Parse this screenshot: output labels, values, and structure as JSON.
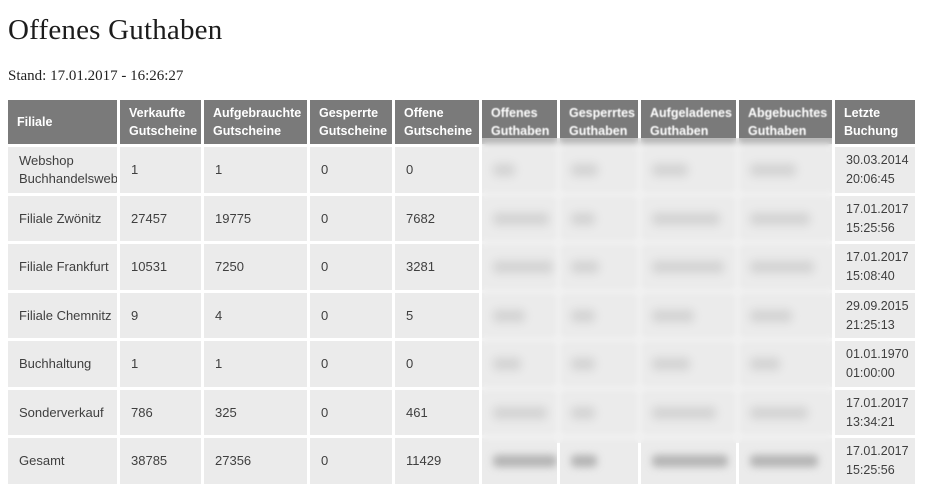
{
  "page": {
    "title": "Offenes Guthaben",
    "stand_line": "Stand: 17.01.2017 - 16:26:27"
  },
  "colors": {
    "header_bg": "#7a7a7a",
    "header_text": "#ffffff",
    "cell_bg": "#ebebeb",
    "cell_text": "#3f3f3f",
    "title_text": "#1c1c1c",
    "page_bg": "#ffffff",
    "smudge": "#a6a6a6"
  },
  "table": {
    "columns": [
      {
        "name": "filiale",
        "label": "Filiale",
        "type": "text",
        "key": "filiale"
      },
      {
        "name": "verkaufte-gutscheine",
        "label": "Verkaufte Gutscheine",
        "type": "text",
        "key": "verkaufte_gutscheine"
      },
      {
        "name": "aufgebrauchte-gutscheine",
        "label": "Aufgebrauchte Gutscheine",
        "type": "text",
        "key": "aufgebrauchte_gutscheine"
      },
      {
        "name": "gesperrte-gutscheine",
        "label": "Gesperrte Gutscheine",
        "type": "text",
        "key": "gesperrte_gutscheine"
      },
      {
        "name": "offene-gutscheine",
        "label": "Offene Gutscheine",
        "type": "text",
        "key": "offene_gutscheine"
      },
      {
        "name": "offenes-guthaben",
        "label": "Offenes Guthaben",
        "type": "redacted",
        "ri": 0,
        "blurred_header": true
      },
      {
        "name": "gesperrtes-guthaben",
        "label": "Gesperrtes Guthaben",
        "type": "redacted",
        "ri": 1,
        "blurred_header": true
      },
      {
        "name": "aufgeladenes-guthaben",
        "label": "Aufgeladenes Guthaben",
        "type": "redacted",
        "ri": 2,
        "blurred_header": true
      },
      {
        "name": "abgebuchtes-guthaben",
        "label": "Abgebuchtes Guthaben",
        "type": "redacted",
        "ri": 3,
        "blurred_header": true
      },
      {
        "name": "letzte-buchung",
        "label": "Letzte Buchung",
        "type": "datetime",
        "key": "letzte_buchung"
      }
    ],
    "redacted_note": "Die vier Guthaben-Spalten sind im Screenshot unkenntlich gemacht (verpixelt/unleserlich)",
    "rows": [
      {
        "filiale": "Webshop Buchhandelsweb",
        "verkaufte_gutscheine": "1",
        "aufgebrauchte_gutscheine": "1",
        "gesperrte_gutscheine": "0",
        "offene_gutscheine": "0",
        "guthaben_blur_widths": [
          22,
          27,
          36,
          46
        ],
        "letzte_buchung": {
          "datum": "30.03.2014",
          "zeit": "20:06:45"
        }
      },
      {
        "filiale": "Filiale Zwönitz",
        "verkaufte_gutscheine": "27457",
        "aufgebrauchte_gutscheine": "19775",
        "gesperrte_gutscheine": "0",
        "offene_gutscheine": "7682",
        "guthaben_blur_widths": [
          56,
          24,
          68,
          60
        ],
        "letzte_buchung": {
          "datum": "17.01.2017",
          "zeit": "15:25:56"
        }
      },
      {
        "filiale": "Filiale Frankfurt",
        "verkaufte_gutscheine": "10531",
        "aufgebrauchte_gutscheine": "7250",
        "gesperrte_gutscheine": "0",
        "offene_gutscheine": "3281",
        "guthaben_blur_widths": [
          60,
          28,
          72,
          64
        ],
        "letzte_buchung": {
          "datum": "17.01.2017",
          "zeit": "15:08:40"
        }
      },
      {
        "filiale": "Filiale Chemnitz",
        "verkaufte_gutscheine": "9",
        "aufgebrauchte_gutscheine": "4",
        "gesperrte_gutscheine": "0",
        "offene_gutscheine": "5",
        "guthaben_blur_widths": [
          32,
          24,
          42,
          42
        ],
        "letzte_buchung": {
          "datum": "29.09.2015",
          "zeit": "21:25:13"
        }
      },
      {
        "filiale": "Buchhaltung",
        "verkaufte_gutscheine": "1",
        "aufgebrauchte_gutscheine": "1",
        "gesperrte_gutscheine": "0",
        "offene_gutscheine": "0",
        "guthaben_blur_widths": [
          28,
          24,
          38,
          30
        ],
        "letzte_buchung": {
          "datum": "01.01.1970",
          "zeit": "01:00:00"
        }
      },
      {
        "filiale": "Sonderverkauf",
        "verkaufte_gutscheine": "786",
        "aufgebrauchte_gutscheine": "325",
        "gesperrte_gutscheine": "0",
        "offene_gutscheine": "461",
        "guthaben_blur_widths": [
          54,
          24,
          64,
          58
        ],
        "letzte_buchung": {
          "datum": "17.01.2017",
          "zeit": "13:34:21"
        }
      },
      {
        "filiale": "Gesamt",
        "verkaufte_gutscheine": "38785",
        "aufgebrauchte_gutscheine": "27356",
        "gesperrte_gutscheine": "0",
        "offene_gutscheine": "11429",
        "guthaben_blur_widths": [
          64,
          26,
          76,
          68
        ],
        "letzte_buchung": {
          "datum": "17.01.2017",
          "zeit": "15:25:56"
        }
      }
    ]
  }
}
